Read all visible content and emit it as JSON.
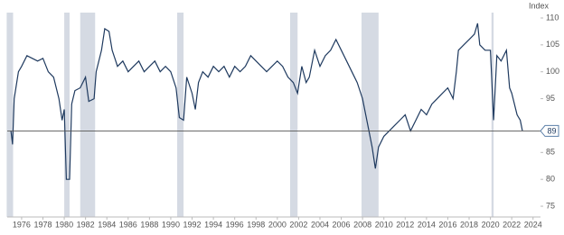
{
  "chart_data": {
    "type": "line",
    "y_axis_label": "Index",
    "x": [
      1975.0,
      1975.15,
      1975.3,
      1975.7,
      1976.0,
      1976.5,
      1977.0,
      1977.5,
      1978.0,
      1978.5,
      1979.0,
      1979.5,
      1979.8,
      1980.0,
      1980.2,
      1980.5,
      1980.7,
      1981.0,
      1981.5,
      1982.0,
      1982.3,
      1982.8,
      1983.0,
      1983.5,
      1983.8,
      1984.2,
      1984.5,
      1985.0,
      1985.5,
      1986.0,
      1986.5,
      1987.0,
      1987.5,
      1988.0,
      1988.5,
      1989.0,
      1989.5,
      1990.0,
      1990.5,
      1990.8,
      1991.2,
      1991.5,
      1992.0,
      1992.3,
      1992.6,
      1993.0,
      1993.5,
      1994.0,
      1994.5,
      1995.0,
      1995.5,
      1996.0,
      1996.5,
      1997.0,
      1997.5,
      1998.0,
      1998.5,
      1999.0,
      1999.5,
      2000.0,
      2000.5,
      2001.0,
      2001.5,
      2001.9,
      2002.3,
      2002.7,
      2003.0,
      2003.5,
      2004.0,
      2004.5,
      2005.0,
      2005.5,
      2006.0,
      2006.5,
      2007.0,
      2007.5,
      2008.0,
      2008.5,
      2008.9,
      2009.2,
      2009.5,
      2010.0,
      2010.5,
      2011.0,
      2011.5,
      2012.0,
      2012.5,
      2013.0,
      2013.5,
      2014.0,
      2014.5,
      2015.0,
      2015.5,
      2016.0,
      2016.5,
      2016.8,
      2017.0,
      2017.5,
      2018.0,
      2018.5,
      2018.8,
      2019.0,
      2019.5,
      2020.0,
      2020.3,
      2020.6,
      2021.0,
      2021.5,
      2021.8,
      2022.0,
      2022.5,
      2022.8,
      2023.0
    ],
    "series": [
      {
        "name": "Index",
        "color": "#1f3a5f",
        "values": [
          89,
          86.5,
          95,
          100,
          101,
          103,
          102.5,
          102,
          102.5,
          100,
          99,
          95,
          91,
          93,
          80,
          80,
          94,
          96.5,
          97,
          99,
          94.5,
          95,
          100,
          104,
          108,
          107.5,
          104,
          101,
          102,
          100,
          101,
          102,
          100,
          101,
          102,
          100,
          101,
          100,
          97,
          91.5,
          91,
          99,
          96,
          93,
          98,
          100,
          99,
          101,
          100,
          101,
          99,
          101,
          100,
          101,
          103,
          102,
          101,
          100,
          101,
          102,
          101,
          99,
          98,
          96,
          101,
          98,
          99,
          104,
          101,
          103,
          104,
          106,
          104,
          102,
          100,
          98,
          95,
          90,
          86,
          82,
          86,
          88,
          89,
          90,
          91,
          92,
          89,
          91,
          93,
          92,
          94,
          95,
          96,
          97,
          95,
          100,
          104,
          105,
          106,
          107,
          109,
          105,
          104,
          104,
          91,
          103,
          102,
          104,
          97,
          96,
          92,
          91,
          89
        ]
      }
    ],
    "recessions": [
      [
        1974.6,
        1975.2
      ],
      [
        1980.0,
        1980.5
      ],
      [
        1981.5,
        1982.9
      ],
      [
        1990.6,
        1991.2
      ],
      [
        2001.2,
        2001.9
      ],
      [
        2007.9,
        2009.5
      ],
      [
        2020.1,
        2020.3
      ]
    ],
    "reference_line": 89,
    "xlim": [
      1974.65,
      2024.7
    ],
    "ylim": [
      73,
      111
    ],
    "xticks": [
      1976,
      1978,
      1980,
      1982,
      1984,
      1986,
      1988,
      1990,
      1992,
      1994,
      1996,
      1998,
      2000,
      2002,
      2004,
      2006,
      2008,
      2010,
      2012,
      2014,
      2016,
      2018,
      2020,
      2022,
      2024
    ],
    "yticks": [
      75,
      80,
      85,
      95,
      100,
      105,
      110
    ],
    "recession_color": "#d5dae3"
  }
}
